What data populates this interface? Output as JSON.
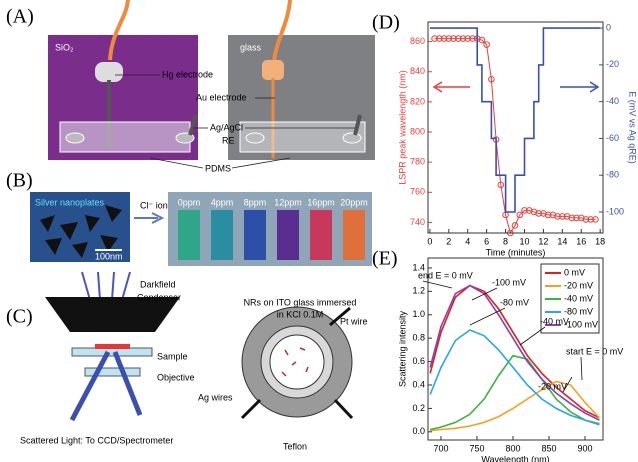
{
  "panel_a": {
    "label": "(A)",
    "substrate_left": "SiO₂",
    "substrate_right": "glass",
    "hg": "Hg electrode",
    "au": "Au electrode",
    "ref1": "Ag/AgCl",
    "ref2": "RE",
    "pdms": "PDMS"
  },
  "panel_b": {
    "label": "(B)",
    "tem": "Silver nanoplates",
    "scale": "100nm",
    "arrow": "Cl⁻ ions",
    "vials": [
      "0ppm",
      "4ppm",
      "8ppm",
      "12ppm",
      "16ppm",
      "20ppm"
    ]
  },
  "panel_c": {
    "label": "(C)",
    "condenser1": "Darkfield",
    "condenser2": "Condenser",
    "sample": "Sample",
    "objective": "Objective",
    "scattered": "Scattered Light: To CCD/Spectrometer",
    "cell1": "NRs on ITO glass immersed",
    "cell2": "in KCl 0.1M",
    "pt": "Pt wire",
    "ag": "Ag wires",
    "teflon": "Teflon"
  },
  "chart_data": [
    {
      "type": "line",
      "title": "(D)",
      "xlabel": "Time (minutes)",
      "ylabel": "LSPR peak wavelength (nm)",
      "y2label": "E (mV vs Ag qRE)",
      "ycolor": "#e8413c",
      "y2color": "#3a4fb0",
      "xlim": [
        -0.2,
        18.3
      ],
      "xticks": [
        0,
        2,
        4,
        6,
        8,
        10,
        12,
        14,
        16,
        18
      ],
      "ylim": [
        733,
        873
      ],
      "yticks": [
        740,
        760,
        780,
        800,
        820,
        840,
        860
      ],
      "y2lim": [
        -111.4,
        3.3
      ],
      "y2ticks": [
        0,
        -20,
        -40,
        -60,
        -80,
        -100
      ],
      "series": [
        {
          "color": "#e8413c",
          "marker": "o",
          "x": [
            0.5,
            1,
            1.5,
            2,
            2.5,
            3,
            3.5,
            4,
            4.5,
            5,
            5.5,
            6,
            6.5,
            7,
            7.5,
            8,
            8.5,
            9,
            9.5,
            10,
            10.5,
            11,
            11.5,
            12,
            12.5,
            13,
            13.5,
            14,
            14.5,
            15,
            15.5,
            16,
            16.5,
            17,
            17.5
          ],
          "values": [
            862,
            862,
            862,
            862,
            862,
            862,
            862,
            862,
            862,
            862,
            861,
            858,
            835,
            795,
            765,
            745,
            733,
            738,
            745,
            748,
            748,
            747,
            746,
            746,
            745,
            745,
            744,
            744,
            744,
            743,
            743,
            743,
            742,
            742,
            742
          ]
        },
        {
          "color": "#3a4fb0",
          "axis": "y2",
          "x": [
            0,
            5,
            5,
            5.5,
            5.5,
            6.5,
            6.5,
            7,
            7,
            8,
            8,
            9,
            9,
            10,
            10,
            11,
            11,
            11.5,
            11.5,
            12,
            12,
            18
          ],
          "values": [
            0,
            0,
            -20,
            -20,
            -40,
            -40,
            -60,
            -60,
            -80,
            -80,
            -100,
            -100,
            -80,
            -80,
            -60,
            -60,
            -40,
            -40,
            -20,
            -20,
            0,
            0
          ]
        }
      ]
    },
    {
      "type": "line",
      "title": "(E)",
      "xlabel": "Wavelength (nm)",
      "ylabel": "Scattering intensity",
      "legend": "upper right",
      "xlim": [
        682,
        925
      ],
      "xticks": [
        700,
        750,
        800,
        850,
        900
      ],
      "ylim": [
        -0.07,
        1.485
      ],
      "yticks": [
        {
          "value": 0,
          "label": "0.0"
        },
        0.2,
        0.4,
        0.6,
        0.8,
        {
          "value": 1,
          "label": "1.0"
        },
        1.2,
        1.4
      ],
      "annotations": [
        "end E = 0 mV",
        "-100 mV",
        "-80 mV",
        "-40 mV",
        "-20 mV",
        "start E = 0 mV"
      ],
      "x": [
        685,
        700,
        720,
        740,
        760,
        780,
        800,
        820,
        840,
        860,
        880,
        900,
        920
      ],
      "series": [
        {
          "name": "0 mV",
          "color": "#e0201b",
          "values": [
            0.5,
            0.85,
            1.15,
            1.25,
            1.2,
            1.05,
            0.85,
            0.65,
            0.5,
            0.38,
            0.28,
            0.18,
            0.12
          ]
        },
        {
          "name": "-20 mV",
          "color": "#f5a020",
          "values": [
            0.01,
            0.02,
            0.03,
            0.05,
            0.08,
            0.13,
            0.2,
            0.28,
            0.36,
            0.43,
            0.4,
            0.25,
            0.12
          ]
        },
        {
          "name": "-40 mV",
          "color": "#3cb33c",
          "values": [
            0.02,
            0.04,
            0.08,
            0.15,
            0.28,
            0.48,
            0.65,
            0.62,
            0.45,
            0.28,
            0.17,
            0.1,
            0.06
          ]
        },
        {
          "name": "-80 mV",
          "color": "#2aa7e0",
          "values": [
            0.32,
            0.55,
            0.78,
            0.87,
            0.82,
            0.7,
            0.55,
            0.4,
            0.28,
            0.2,
            0.14,
            0.1,
            0.07
          ]
        },
        {
          "name": "-100 mV",
          "color": "#8a3fb5",
          "values": [
            0.55,
            0.9,
            1.18,
            1.25,
            1.18,
            1.0,
            0.8,
            0.6,
            0.45,
            0.33,
            0.24,
            0.16,
            0.1
          ]
        }
      ]
    }
  ]
}
